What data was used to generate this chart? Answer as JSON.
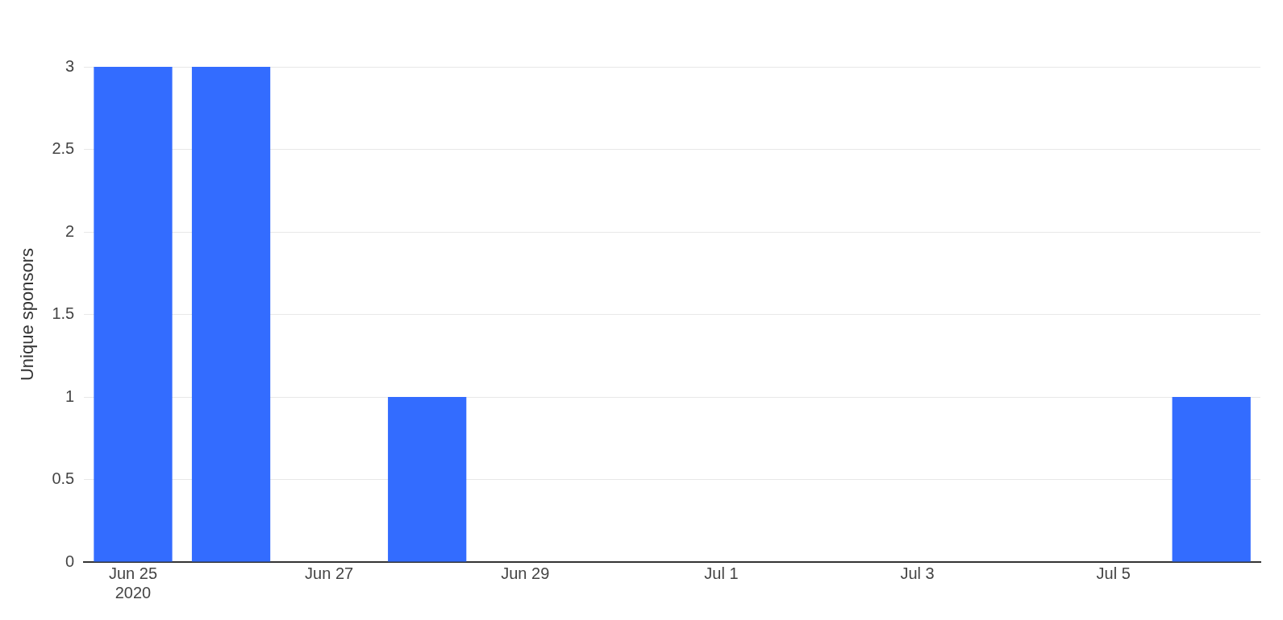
{
  "chart_data": {
    "type": "bar",
    "ylabel": "Unique sponsors",
    "x": [
      "2020-06-25",
      "2020-06-26",
      "2020-06-28",
      "2020-07-06"
    ],
    "values": [
      3,
      3,
      1,
      1
    ],
    "color": "#336cff",
    "xlim": [
      "2020-06-24T12:00",
      "2020-07-06T12:00"
    ],
    "xticks": [
      {
        "value": "2020-06-25",
        "label": "Jun 25\n2020"
      },
      {
        "value": "2020-06-27",
        "label": "Jun 27"
      },
      {
        "value": "2020-06-29",
        "label": "Jun 29"
      },
      {
        "value": "2020-07-01",
        "label": "Jul 1"
      },
      {
        "value": "2020-07-03",
        "label": "Jul 3"
      },
      {
        "value": "2020-07-05",
        "label": "Jul 5"
      }
    ],
    "ylim": [
      0,
      3
    ],
    "yticks": [
      0,
      0.5,
      1,
      1.5,
      2,
      2.5,
      3
    ],
    "grid": "y",
    "legend": false
  }
}
